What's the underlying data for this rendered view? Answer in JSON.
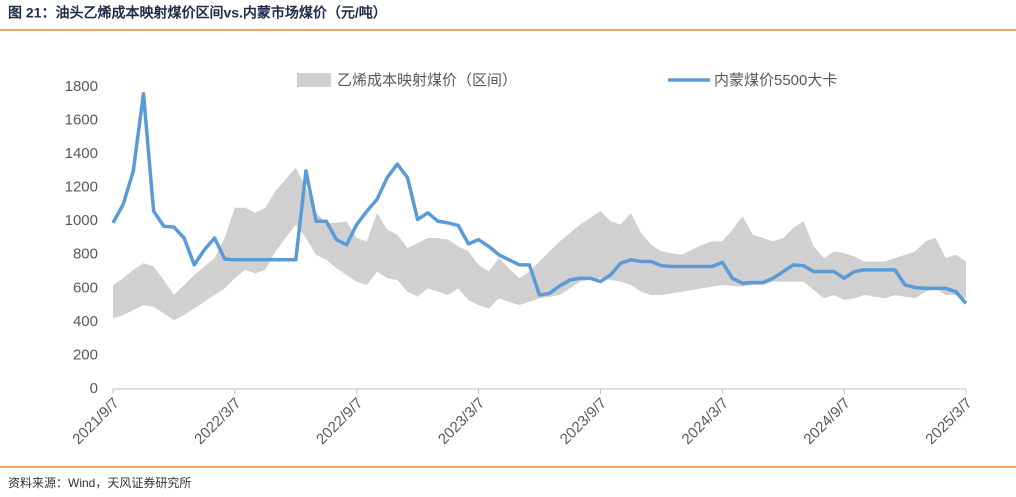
{
  "chart_data": {
    "type": "line",
    "title": "图 21：油头乙烯成本映射煤价区间vs.内蒙市场煤价（元/吨）",
    "source": "资料来源：Wind，天风证券研究所",
    "categories": [
      "2021/9/7",
      null,
      null,
      null,
      null,
      null,
      null,
      null,
      null,
      null,
      null,
      null,
      "2022/3/7",
      null,
      null,
      null,
      null,
      null,
      null,
      null,
      null,
      null,
      null,
      null,
      "2022/9/7",
      null,
      null,
      null,
      null,
      null,
      null,
      null,
      null,
      null,
      null,
      null,
      "2023/3/7",
      null,
      null,
      null,
      null,
      null,
      null,
      null,
      null,
      null,
      null,
      null,
      "2023/9/7",
      null,
      null,
      null,
      null,
      null,
      null,
      null,
      null,
      null,
      null,
      null,
      "2024/3/7",
      null,
      null,
      null,
      null,
      null,
      null,
      null,
      null,
      null,
      null,
      null,
      "2024/9/7",
      null,
      null,
      null,
      null,
      null,
      null,
      null,
      null,
      null,
      null,
      null,
      "2025/3/7"
    ],
    "series": [
      {
        "name": "乙烯成本映射煤价（区间）",
        "color": "#d0d0d0",
        "style": "band",
        "low": [
          420,
          440,
          470,
          500,
          490,
          450,
          410,
          440,
          480,
          520,
          560,
          600,
          660,
          710,
          690,
          710,
          820,
          900,
          980,
          900,
          800,
          770,
          720,
          680,
          640,
          620,
          700,
          660,
          650,
          580,
          550,
          600,
          580,
          560,
          600,
          530,
          500,
          480,
          540,
          520,
          500,
          520,
          540,
          550,
          560,
          600,
          640,
          650,
          660,
          650,
          640,
          620,
          580,
          560,
          560,
          570,
          580,
          590,
          600,
          610,
          620,
          615,
          610,
          620,
          620,
          640,
          640,
          640,
          640,
          590,
          540,
          560,
          530,
          540,
          560,
          550,
          540,
          560,
          550,
          540,
          580,
          600,
          560,
          560,
          540
        ],
        "high": [
          620,
          660,
          710,
          750,
          730,
          650,
          560,
          620,
          680,
          730,
          780,
          900,
          1080,
          1080,
          1050,
          1080,
          1180,
          1250,
          1320,
          1200,
          1050,
          990,
          990,
          1000,
          900,
          880,
          1050,
          950,
          920,
          840,
          870,
          900,
          900,
          890,
          850,
          820,
          740,
          700,
          780,
          720,
          660,
          700,
          760,
          820,
          880,
          930,
          980,
          1020,
          1060,
          1000,
          980,
          1050,
          930,
          860,
          820,
          810,
          800,
          830,
          860,
          880,
          880,
          950,
          1030,
          920,
          900,
          880,
          900,
          960,
          1000,
          850,
          780,
          820,
          810,
          790,
          760,
          760,
          760,
          780,
          800,
          820,
          880,
          900,
          780,
          800,
          760
        ]
      },
      {
        "name": "内蒙煤价5500大卡",
        "color": "#5b9bd5",
        "style": "line",
        "values": [
          990,
          1100,
          1300,
          1760,
          1060,
          970,
          965,
          900,
          740,
          830,
          900,
          775,
          770,
          770,
          770,
          770,
          770,
          770,
          770,
          1300,
          1000,
          1000,
          890,
          860,
          980,
          1060,
          1130,
          1260,
          1340,
          1260,
          1010,
          1050,
          1000,
          990,
          975,
          865,
          890,
          850,
          800,
          770,
          740,
          740,
          560,
          570,
          615,
          650,
          660,
          660,
          640,
          680,
          750,
          770,
          760,
          760,
          735,
          730,
          730,
          730,
          730,
          730,
          755,
          660,
          630,
          635,
          635,
          660,
          700,
          740,
          735,
          700,
          700,
          700,
          660,
          700,
          710,
          710,
          710,
          710,
          620,
          605,
          600,
          600,
          600,
          580,
          510
        ]
      }
    ],
    "ylim": [
      0,
      1800
    ],
    "yticks": [
      0,
      200,
      400,
      600,
      800,
      1000,
      1200,
      1400,
      1600,
      1800
    ],
    "grid": false
  }
}
